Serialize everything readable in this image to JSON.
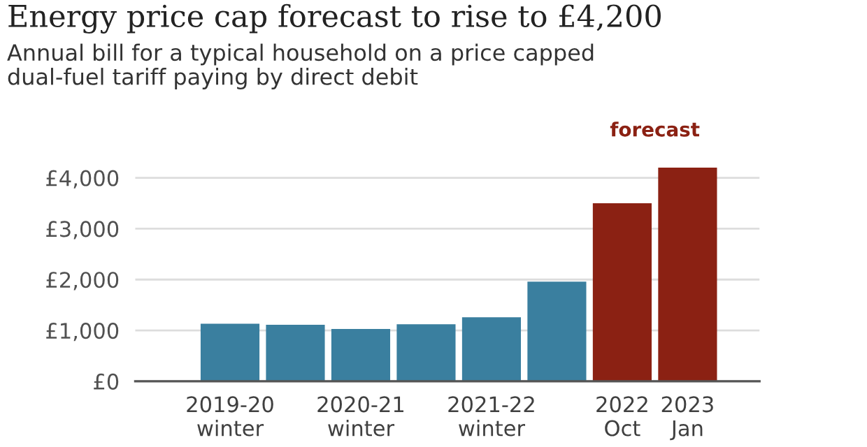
{
  "chart_data": {
    "type": "bar",
    "title": "Energy price cap forecast to rise to £4,200",
    "subtitle": "Annual bill for a typical household on a price capped\ndual-fuel tariff paying by direct debit",
    "categories": [
      "2019-20\nwinter",
      null,
      "2020-21\nwinter",
      null,
      "2021-22\nwinter",
      null,
      "2022\nOct",
      "2023\nJan"
    ],
    "values": [
      1130,
      1110,
      1030,
      1120,
      1260,
      1960,
      3500,
      4200
    ],
    "colors": [
      "#3a7f9f",
      "#3a7f9f",
      "#3a7f9f",
      "#3a7f9f",
      "#3a7f9f",
      "#3a7f9f",
      "#8b2113",
      "#8b2113"
    ],
    "ylim": [
      0,
      4200
    ],
    "yticks": [
      {
        "value": 0,
        "label": "£0"
      },
      {
        "value": 1000,
        "label": "£1,000"
      },
      {
        "value": 2000,
        "label": "£2,000"
      },
      {
        "value": 3000,
        "label": "£3,000"
      },
      {
        "value": 4000,
        "label": "£4,000"
      }
    ],
    "grid": "y",
    "legend": false,
    "annotations": [
      "forecast"
    ]
  }
}
